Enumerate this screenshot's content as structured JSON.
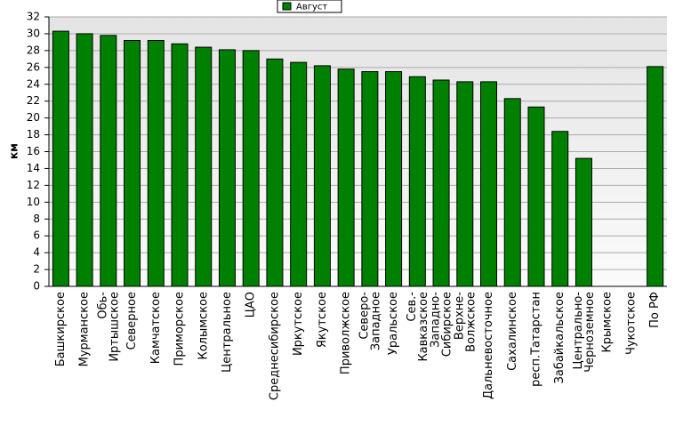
{
  "chart_data": {
    "type": "bar",
    "y_label": "км",
    "categories": [
      "Башкирское",
      "Мурманское",
      "Обь-\nИртышское",
      "Северное",
      "Камчатское",
      "Приморское",
      "Колымское",
      "Центральное",
      "ЦАО",
      "Среднесибирское",
      "Иркутское",
      "Якутское",
      "Приволжское",
      "Северо-\nЗападное",
      "Уральское",
      "Сев.-\nКавказское",
      "Западно-\nСибирское",
      "Верхне-\nВолжское",
      "Дальневосточное",
      "Сахалинское",
      "респ.Татарстан",
      "Забайкальское",
      "Центрально-\nЧерноземное",
      "Крымское",
      "Чукотское",
      "По РФ"
    ],
    "series": [
      {
        "name": "Август",
        "color": "#008000",
        "values": [
          30.3,
          30.0,
          29.8,
          29.2,
          29.2,
          28.8,
          28.4,
          28.1,
          28.0,
          27.0,
          26.6,
          26.2,
          25.8,
          25.5,
          25.5,
          24.9,
          24.5,
          24.3,
          24.3,
          22.3,
          21.3,
          18.4,
          15.2,
          0,
          0,
          26.1
        ]
      }
    ],
    "ylim": [
      0,
      32
    ],
    "yticks": [
      0,
      2,
      4,
      6,
      8,
      10,
      12,
      14,
      16,
      18,
      20,
      22,
      24,
      26,
      28,
      30,
      32
    ],
    "grid": true,
    "legend": "top"
  }
}
